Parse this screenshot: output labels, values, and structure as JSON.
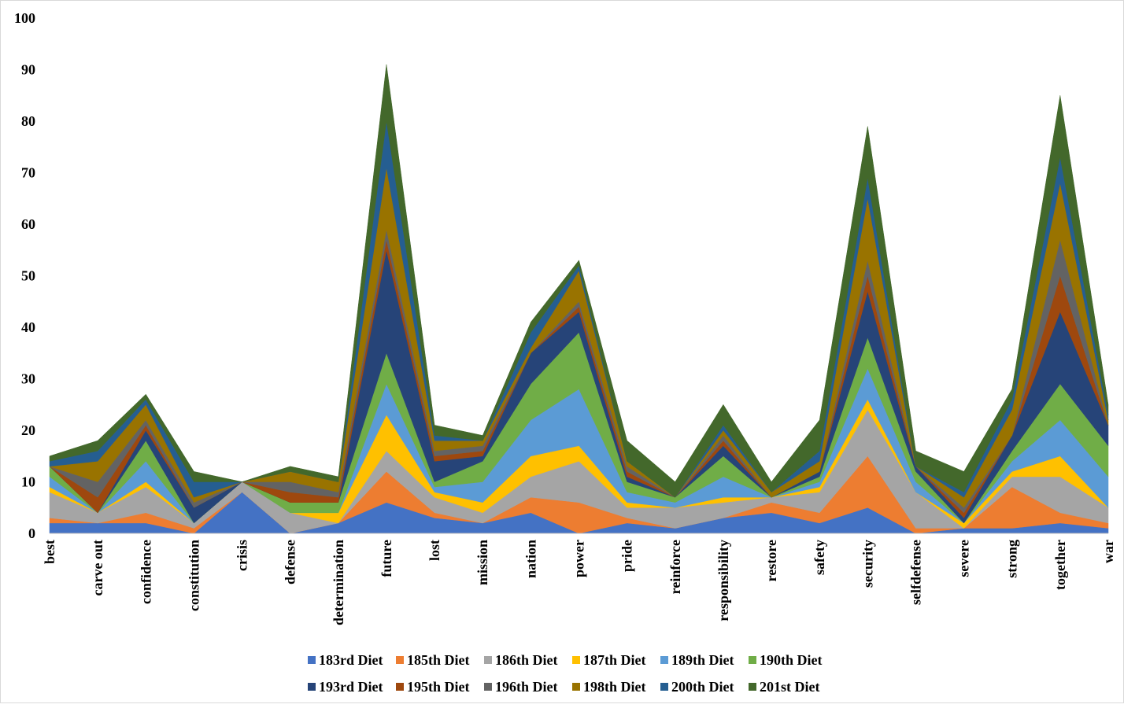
{
  "chart_data": {
    "type": "area",
    "title": "",
    "xlabel": "",
    "ylabel": "",
    "ylim": [
      0,
      100
    ],
    "yticks": [
      0,
      10,
      20,
      30,
      40,
      50,
      60,
      70,
      80,
      90,
      100
    ],
    "grid": false,
    "legend_position": "bottom",
    "categories": [
      "best",
      "carve out",
      "confidence",
      "constitution",
      "crisis",
      "defense",
      "determination",
      "future",
      "lost",
      "mission",
      "nation",
      "power",
      "pride",
      "reinforce",
      "responsibility",
      "restore",
      "safety",
      "security",
      "selfdefense",
      "severe",
      "strong",
      "together",
      "war"
    ],
    "series": [
      {
        "name": "183rd Diet",
        "color": "#4472C4",
        "values": [
          2,
          2,
          2,
          0,
          8,
          0,
          2,
          6,
          3,
          2,
          4,
          0,
          2,
          1,
          3,
          4,
          2,
          5,
          0,
          1,
          1,
          2,
          1
        ]
      },
      {
        "name": "185th Diet",
        "color": "#ED7D31",
        "values": [
          1,
          0,
          2,
          1,
          0,
          0,
          0,
          6,
          1,
          0,
          3,
          6,
          1,
          0,
          0,
          2,
          2,
          10,
          1,
          0,
          8,
          2,
          1
        ]
      },
      {
        "name": "186th Diet",
        "color": "#A5A5A5",
        "values": [
          5,
          2,
          5,
          1,
          2,
          4,
          0,
          4,
          3,
          2,
          4,
          8,
          2,
          4,
          3,
          1,
          4,
          9,
          7,
          0,
          2,
          7,
          3
        ]
      },
      {
        "name": "187th Diet",
        "color": "#FFC000",
        "values": [
          1,
          0,
          1,
          0,
          0,
          0,
          2,
          7,
          1,
          2,
          4,
          3,
          1,
          0,
          1,
          0,
          1,
          2,
          0,
          1,
          1,
          4,
          0
        ]
      },
      {
        "name": "189th Diet",
        "color": "#5B9BD5",
        "values": [
          2,
          0,
          4,
          0,
          0,
          0,
          0,
          6,
          1,
          4,
          7,
          11,
          2,
          1,
          4,
          0,
          1,
          6,
          2,
          0,
          2,
          7,
          6
        ]
      },
      {
        "name": "190th Diet",
        "color": "#70AD47",
        "values": [
          2,
          0,
          4,
          0,
          0,
          2,
          2,
          6,
          1,
          4,
          7,
          11,
          2,
          1,
          4,
          0,
          1,
          6,
          2,
          0,
          2,
          7,
          6
        ]
      },
      {
        "name": "193rd Diet",
        "color": "#264478",
        "values": [
          0,
          0,
          2,
          3,
          0,
          0,
          0,
          20,
          4,
          1,
          6,
          4,
          1,
          0,
          2,
          0,
          1,
          9,
          1,
          1,
          3,
          14,
          4
        ]
      },
      {
        "name": "195th Diet",
        "color": "#9E480E",
        "values": [
          0,
          3,
          1,
          0,
          0,
          2,
          1,
          2,
          1,
          1,
          0,
          1,
          1,
          0,
          1,
          0,
          0,
          3,
          0,
          1,
          0,
          7,
          0
        ]
      },
      {
        "name": "196th Diet",
        "color": "#636363",
        "values": [
          0,
          3,
          1,
          1,
          0,
          2,
          1,
          2,
          1,
          1,
          0,
          1,
          1,
          0,
          1,
          0,
          0,
          3,
          0,
          1,
          0,
          7,
          0
        ]
      },
      {
        "name": "198th Diet",
        "color": "#997300",
        "values": [
          0,
          4,
          3,
          1,
          0,
          2,
          2,
          12,
          2,
          1,
          1,
          6,
          1,
          0,
          1,
          1,
          2,
          12,
          0,
          2,
          5,
          11,
          1
        ]
      },
      {
        "name": "200th Diet",
        "color": "#255E91",
        "values": [
          1,
          2,
          1,
          3,
          0,
          0,
          0,
          9,
          1,
          0,
          3,
          1,
          0,
          0,
          1,
          0,
          2,
          4,
          0,
          1,
          2,
          5,
          1
        ]
      },
      {
        "name": "201st Diet",
        "color": "#43682B",
        "values": [
          1,
          2,
          1,
          2,
          0,
          1,
          1,
          11,
          2,
          1,
          2,
          1,
          4,
          3,
          4,
          2,
          6,
          10,
          3,
          4,
          2,
          12,
          2
        ]
      }
    ]
  }
}
